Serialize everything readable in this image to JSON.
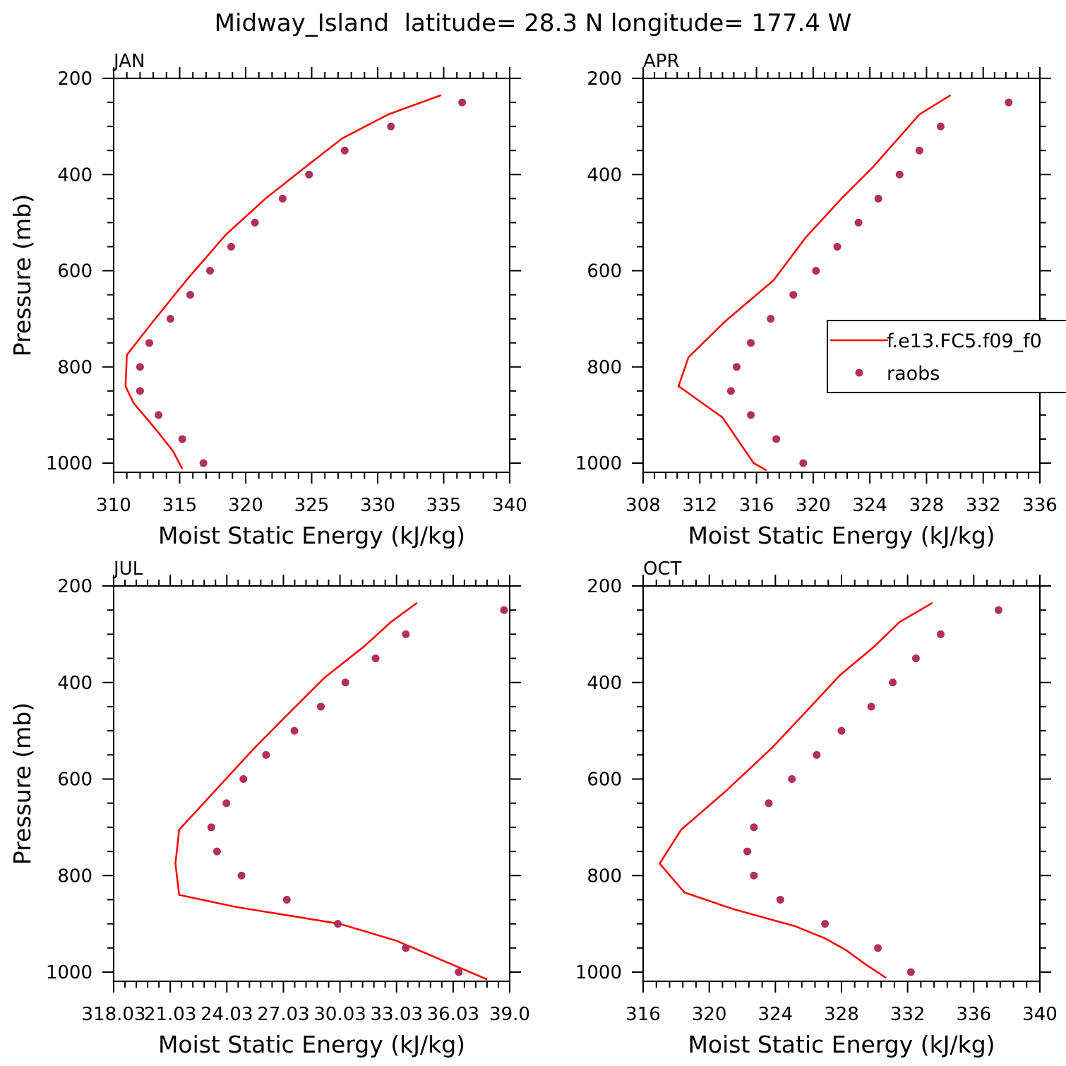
{
  "figure_title": "Midway_Island  latitude= 28.3 N longitude= 177.4 W",
  "colors": {
    "model_line": "#ff0000",
    "raobs_marker": "#b03060",
    "axes": "#000000"
  },
  "legend": {
    "placement": "right-middle of APR panel",
    "entries": [
      {
        "label": "f.e13.FC5.f09_f0",
        "style": "line",
        "color": "#ff0000"
      },
      {
        "label": "raobs",
        "style": "marker",
        "color": "#b03060"
      }
    ]
  },
  "chart_data": [
    {
      "type": "line+scatter",
      "title": "JAN",
      "xlabel": "Moist Static Energy (kJ/kg)",
      "ylabel": "Pressure (mb)",
      "xlim": [
        310,
        340
      ],
      "ylim": [
        1000,
        200
      ],
      "x_ticks": [
        "310",
        "315",
        "320",
        "325",
        "330",
        "335",
        "340"
      ],
      "y_ticks": [
        "200",
        "400",
        "600",
        "800",
        "1000"
      ],
      "series": [
        {
          "name": "f.e13.FC5.f09_f0",
          "kind": "line",
          "x": [
            334.8,
            330.8,
            327.3,
            324.5,
            321.5,
            318.5,
            315.5,
            313.0,
            311.0,
            310.9,
            311.5,
            313.2,
            314.5,
            315.2
          ],
          "y": [
            235,
            275,
            325,
            385,
            450,
            525,
            620,
            705,
            775,
            840,
            875,
            930,
            975,
            1012
          ]
        },
        {
          "name": "raobs",
          "kind": "scatter",
          "x": [
            336.4,
            331.0,
            327.5,
            324.8,
            322.8,
            320.7,
            318.9,
            317.3,
            315.8,
            314.3,
            312.7,
            312.0,
            312.0,
            313.4,
            315.2,
            316.8
          ],
          "y": [
            250,
            300,
            350,
            400,
            450,
            500,
            550,
            600,
            650,
            700,
            750,
            800,
            850,
            900,
            950,
            1000
          ]
        }
      ]
    },
    {
      "type": "line+scatter",
      "title": "APR",
      "xlabel": "Moist Static Energy (kJ/kg)",
      "ylabel": "",
      "xlim": [
        308,
        336
      ],
      "ylim": [
        1000,
        200
      ],
      "x_ticks": [
        "308",
        "312",
        "316",
        "320",
        "324",
        "328",
        "332",
        "336"
      ],
      "y_ticks": [
        "200",
        "400",
        "600",
        "800",
        "1000"
      ],
      "series": [
        {
          "name": "f.e13.FC5.f09_f0",
          "kind": "line",
          "x": [
            329.7,
            327.5,
            326.0,
            324.2,
            322.0,
            319.5,
            317.2,
            313.8,
            311.2,
            310.5,
            313.6,
            315.8,
            316.7
          ],
          "y": [
            235,
            275,
            325,
            385,
            450,
            530,
            620,
            705,
            780,
            840,
            905,
            1000,
            1015
          ]
        },
        {
          "name": "raobs",
          "kind": "scatter",
          "x": [
            333.8,
            329.0,
            327.5,
            326.1,
            324.6,
            323.2,
            321.7,
            320.2,
            318.6,
            317.0,
            315.6,
            314.6,
            314.2,
            315.6,
            317.4,
            319.3
          ],
          "y": [
            250,
            300,
            350,
            400,
            450,
            500,
            550,
            600,
            650,
            700,
            750,
            800,
            850,
            900,
            950,
            1000
          ]
        }
      ]
    },
    {
      "type": "line+scatter",
      "title": "JUL",
      "xlabel": "Moist Static Energy (kJ/kg)",
      "ylabel": "Pressure (mb)",
      "xlim": [
        318.03,
        339.0
      ],
      "ylim": [
        1000,
        200
      ],
      "x_ticks": [
        "318.03",
        "21.03",
        "24.03",
        "27.03",
        "30.03",
        "33.03",
        "36.03",
        "39.0"
      ],
      "y_ticks": [
        "200",
        "400",
        "600",
        "800",
        "1000"
      ],
      "series": [
        {
          "name": "f.e13.FC5.f09_f0",
          "kind": "line",
          "x": [
            334.1,
            332.7,
            331.3,
            329.2,
            327.4,
            325.5,
            323.5,
            321.5,
            321.3,
            321.5,
            324.5,
            330.0,
            333.0,
            334.5,
            336.3,
            337.8
          ],
          "y": [
            235,
            275,
            325,
            390,
            460,
            535,
            620,
            705,
            775,
            840,
            865,
            900,
            935,
            960,
            990,
            1015
          ]
        },
        {
          "name": "raobs",
          "kind": "scatter",
          "x": [
            338.7,
            333.5,
            331.9,
            330.3,
            329.0,
            327.6,
            326.1,
            324.9,
            324.0,
            323.2,
            323.5,
            324.8,
            327.2,
            329.9,
            333.5,
            336.3
          ],
          "y": [
            250,
            300,
            350,
            400,
            450,
            500,
            550,
            600,
            650,
            700,
            750,
            800,
            850,
            900,
            950,
            1000
          ]
        }
      ]
    },
    {
      "type": "line+scatter",
      "title": "OCT",
      "xlabel": "Moist Static Energy (kJ/kg)",
      "ylabel": "",
      "xlim": [
        316,
        340
      ],
      "ylim": [
        1000,
        200
      ],
      "x_ticks": [
        "316",
        "320",
        "324",
        "328",
        "332",
        "336",
        "340"
      ],
      "y_ticks": [
        "200",
        "400",
        "600",
        "800",
        "1000"
      ],
      "series": [
        {
          "name": "f.e13.FC5.f09_f0",
          "kind": "line",
          "x": [
            333.5,
            331.5,
            330.0,
            327.9,
            326.0,
            323.8,
            321.0,
            318.3,
            317.0,
            318.5,
            321.5,
            325.2,
            327.0,
            328.3,
            329.5,
            330.7
          ],
          "y": [
            235,
            275,
            325,
            385,
            455,
            535,
            625,
            705,
            775,
            835,
            870,
            905,
            930,
            955,
            985,
            1012
          ]
        },
        {
          "name": "raobs",
          "kind": "scatter",
          "x": [
            337.5,
            334.0,
            332.5,
            331.1,
            329.8,
            328.0,
            326.5,
            325.0,
            323.6,
            322.7,
            322.3,
            322.7,
            324.3,
            327.0,
            330.2,
            332.2
          ],
          "y": [
            250,
            300,
            350,
            400,
            450,
            500,
            550,
            600,
            650,
            700,
            750,
            800,
            850,
            900,
            950,
            1000
          ]
        }
      ]
    }
  ]
}
